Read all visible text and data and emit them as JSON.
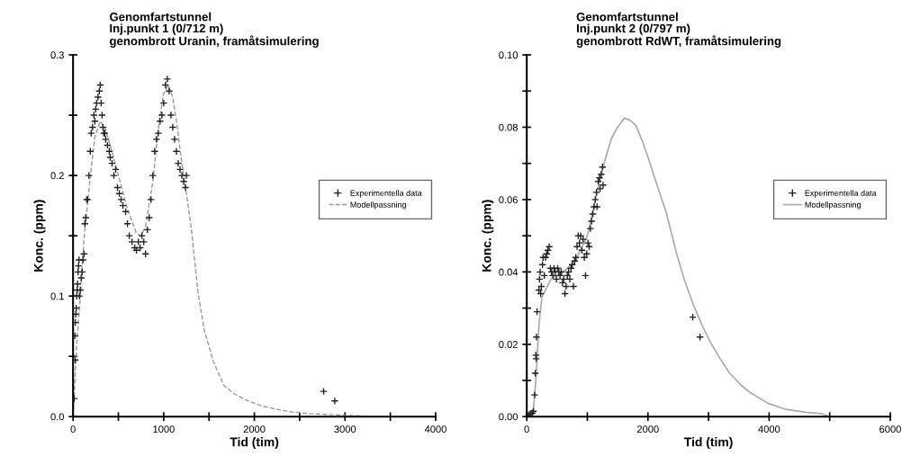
{
  "chart_data": [
    {
      "type": "scatter",
      "title": "Genomfartstunnel\nInj.punkt 1 (0/712 m)\ngenombrott Uranin, framåtsimulering",
      "xlabel": "Tid (tim)",
      "ylabel": "Konc. (ppm)",
      "legend": "right",
      "xlim": [
        0,
        4000
      ],
      "xticks": [
        0,
        {
          "value": 500,
          "label": null
        },
        1000,
        {
          "value": 1500,
          "label": null
        },
        2000,
        {
          "value": 2500,
          "label": null
        },
        3000,
        {
          "value": 3500,
          "label": null
        },
        4000
      ],
      "ylim": [
        0,
        0.3
      ],
      "yticks": [
        {
          "value": 0,
          "label": "0.0"
        },
        {
          "value": 0.05,
          "label": null
        },
        0.1,
        {
          "value": 0.15,
          "label": null
        },
        0.2,
        {
          "value": 0.25,
          "label": null
        },
        0.3
      ],
      "series": [
        {
          "name": "Experimentella data",
          "marker": "cross",
          "color": "#222222",
          "x": [
            13,
            23,
            20,
            25,
            30,
            35,
            40,
            45,
            50,
            55,
            60,
            65,
            70,
            80,
            90,
            100,
            110,
            120,
            130,
            140,
            150,
            160,
            175,
            190,
            200,
            215,
            230,
            240,
            250,
            260,
            275,
            290,
            300,
            310,
            320,
            330,
            340,
            350,
            360,
            380,
            400,
            410,
            430,
            450,
            470,
            490,
            510,
            530,
            550,
            580,
            600,
            620,
            650,
            680,
            700,
            720,
            740,
            760,
            780,
            800,
            820,
            840,
            860,
            880,
            900,
            920,
            940,
            960,
            980,
            1000,
            1020,
            1040,
            1060,
            1080,
            1100,
            1120,
            1140,
            1160,
            1180,
            1200,
            1220,
            1240,
            1250,
            2764,
            2887
          ],
          "values": [
            0.015,
            0.047,
            0.067,
            0.078,
            0.085,
            0.09,
            0.1,
            0.105,
            0.11,
            0.12,
            0.125,
            0.13,
            0.1,
            0.105,
            0.115,
            0.12,
            0.13,
            0.135,
            0.16,
            0.165,
            0.18,
            0.18,
            0.2,
            0.22,
            0.235,
            0.24,
            0.25,
            0.245,
            0.255,
            0.26,
            0.265,
            0.27,
            0.275,
            0.26,
            0.25,
            0.24,
            0.235,
            0.235,
            0.23,
            0.225,
            0.22,
            0.215,
            0.21,
            0.2,
            0.205,
            0.19,
            0.185,
            0.18,
            0.175,
            0.17,
            0.16,
            0.15,
            0.145,
            0.14,
            0.138,
            0.145,
            0.14,
            0.15,
            0.145,
            0.135,
            0.155,
            0.165,
            0.18,
            0.2,
            0.22,
            0.23,
            0.235,
            0.245,
            0.25,
            0.26,
            0.275,
            0.28,
            0.27,
            0.25,
            0.24,
            0.23,
            0.22,
            0.21,
            0.205,
            0.2,
            0.195,
            0.19,
            0.2,
            0.021,
            0.013
          ]
        },
        {
          "name": "Modellpassning",
          "type": "line",
          "line_style": "dashed",
          "color": "#999999",
          "x": [
            0,
            40,
            80,
            120,
            190,
            240,
            300,
            360,
            420,
            500,
            600,
            700,
            750,
            800,
            880,
            950,
            1000,
            1050,
            1100,
            1150,
            1200,
            1300,
            1380,
            1447,
            1546,
            1662,
            1778,
            1900,
            2075,
            2250,
            2405,
            2600,
            2900,
            3300
          ],
          "values": [
            0,
            0.06,
            0.1,
            0.147,
            0.199,
            0.232,
            0.245,
            0.238,
            0.222,
            0.2,
            0.172,
            0.152,
            0.15,
            0.158,
            0.195,
            0.245,
            0.268,
            0.275,
            0.265,
            0.24,
            0.21,
            0.159,
            0.102,
            0.072,
            0.046,
            0.026,
            0.019,
            0.014,
            0.009,
            0.006,
            0.004,
            0.0025,
            0.0015,
            0
          ]
        }
      ]
    },
    {
      "type": "scatter",
      "title": "Genomfartstunnel\nInj.punkt 2 (0/797 m)\ngenombrott RdWT, framåtsimulering",
      "xlabel": "Tid (tim)",
      "ylabel": "Konc. (ppm)",
      "legend": "right",
      "xlim": [
        0,
        6000
      ],
      "xticks": [
        0,
        {
          "value": 1000,
          "label": null
        },
        2000,
        {
          "value": 3000,
          "label": null
        },
        4000,
        {
          "value": 5000,
          "label": null
        },
        6000
      ],
      "ylim": [
        0,
        0.1
      ],
      "yticks": [
        {
          "value": 0,
          "label": "0.00"
        },
        {
          "value": 0.01,
          "label": null
        },
        {
          "value": 0.02,
          "label": "0.02"
        },
        {
          "value": 0.03,
          "label": null
        },
        {
          "value": 0.04,
          "label": "0.04"
        },
        {
          "value": 0.05,
          "label": null
        },
        {
          "value": 0.06,
          "label": "0.06"
        },
        {
          "value": 0.07,
          "label": null
        },
        {
          "value": 0.08,
          "label": "0.08"
        },
        {
          "value": 0.09,
          "label": null
        },
        {
          "value": 0.1,
          "label": "0.10"
        }
      ],
      "series": [
        {
          "name": "Experimentella data",
          "marker": "cross",
          "color": "#222222",
          "x": [
            30,
            60,
            90,
            110,
            130,
            140,
            150,
            155,
            160,
            170,
            200,
            210,
            220,
            230,
            240,
            260,
            270,
            290,
            310,
            330,
            350,
            370,
            390,
            410,
            430,
            450,
            470,
            490,
            510,
            530,
            550,
            570,
            590,
            610,
            630,
            650,
            670,
            690,
            710,
            730,
            750,
            770,
            790,
            810,
            830,
            850,
            870,
            890,
            910,
            930,
            950,
            970,
            990,
            1010,
            1030,
            1050,
            1070,
            1090,
            1110,
            1130,
            1150,
            1160,
            1180,
            1200,
            1210,
            1230,
            1250,
            1260,
            2740,
            2860
          ],
          "values": [
            0.0005,
            0.0008,
            0.001,
            0.0015,
            0.006,
            0.012,
            0.017,
            0.016,
            0.022,
            0.029,
            0.035,
            0.038,
            0.04,
            0.034,
            0.036,
            0.042,
            0.044,
            0.039,
            0.044,
            0.045,
            0.046,
            0.047,
            0.041,
            0.04,
            0.039,
            0.041,
            0.04,
            0.038,
            0.041,
            0.04,
            0.039,
            0.04,
            0.037,
            0.038,
            0.034,
            0.036,
            0.039,
            0.04,
            0.038,
            0.041,
            0.042,
            0.036,
            0.043,
            0.044,
            0.047,
            0.05,
            0.048,
            0.05,
            0.046,
            0.049,
            0.044,
            0.039,
            0.045,
            0.048,
            0.047,
            0.052,
            0.054,
            0.056,
            0.058,
            0.06,
            0.062,
            0.058,
            0.065,
            0.066,
            0.063,
            0.067,
            0.069,
            0.064,
            0.0275,
            0.022
          ]
        },
        {
          "name": "Modellpassning",
          "type": "line",
          "line_style": "solid",
          "color": "#aaaaaa",
          "x": [
            0,
            100,
            150,
            200,
            250,
            400,
            600,
            800,
            1000,
            1200,
            1300,
            1400,
            1500,
            1608,
            1700,
            1800,
            1905,
            2000,
            2104,
            2200,
            2301,
            2475,
            2598,
            2747,
            2900,
            3050,
            3192,
            3350,
            3538,
            3685,
            3980,
            4280,
            4600,
            4870,
            5000
          ],
          "values": [
            0,
            0,
            0.01,
            0.025,
            0.033,
            0.038,
            0.04,
            0.043,
            0.05,
            0.065,
            0.0714,
            0.077,
            0.08,
            0.0825,
            0.082,
            0.0805,
            0.0763,
            0.0718,
            0.0664,
            0.0615,
            0.0565,
            0.045,
            0.038,
            0.031,
            0.025,
            0.02,
            0.016,
            0.012,
            0.0087,
            0.0067,
            0.0037,
            0.002,
            0.0012,
            0.0008,
            0
          ]
        }
      ]
    }
  ]
}
